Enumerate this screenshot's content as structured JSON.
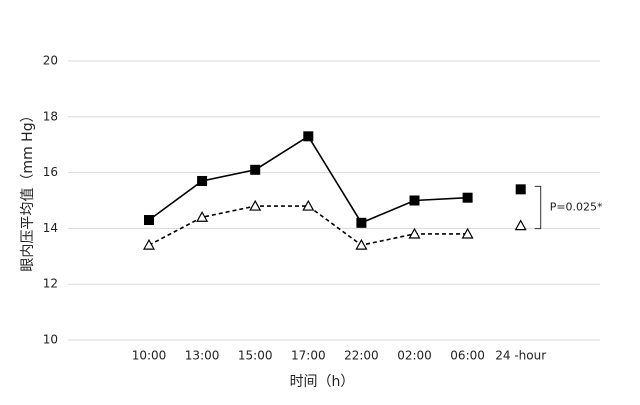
{
  "chart_data": {
    "type": "line",
    "y_label": "眼内压平均值（mm Hg）",
    "x_label": "时间（h）",
    "categories": [
      "10:00",
      "13:00",
      "15:00",
      "17:00",
      "22:00",
      "02:00",
      "06:00",
      "24 -hour"
    ],
    "series": [
      {
        "color": "#000000",
        "marker": "square",
        "line_style": "solid",
        "values": [
          14.3,
          15.7,
          16.1,
          17.3,
          14.2,
          15.0,
          15.1,
          null
        ]
      },
      {
        "color": "#000000",
        "marker": "triangle",
        "line_style": "dashed",
        "values": [
          13.4,
          14.4,
          14.8,
          14.8,
          13.4,
          13.8,
          13.8,
          null
        ]
      },
      {
        "color": "#000000",
        "marker": "square",
        "line_style": "none",
        "values": [
          null,
          null,
          null,
          null,
          null,
          null,
          null,
          15.4
        ]
      },
      {
        "color": "#000000",
        "marker": "triangle",
        "line_style": "none",
        "values": [
          null,
          null,
          null,
          null,
          null,
          null,
          null,
          14.1
        ]
      }
    ],
    "annotation": "P=0.025*",
    "ylim": [
      10,
      20
    ],
    "yticks": [
      10,
      12,
      14,
      16,
      18,
      20
    ],
    "grid": true
  }
}
